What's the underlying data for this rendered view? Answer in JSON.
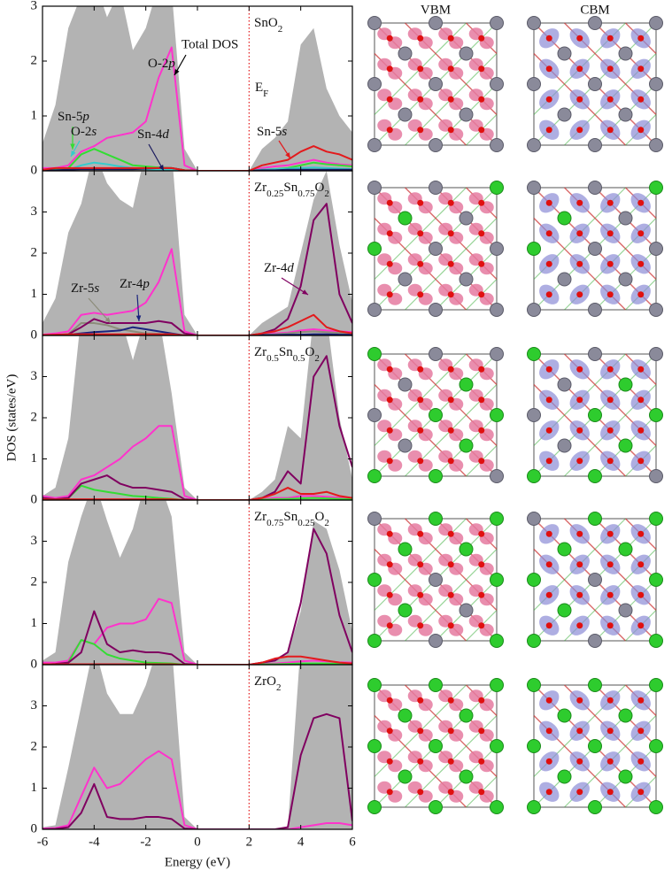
{
  "structures": {
    "columns": [
      "VBM",
      "CBM"
    ]
  },
  "chart_data": [
    {
      "type": "line",
      "title": "SnO2",
      "fermi_label": "EF",
      "fermi_level": 2,
      "x": [
        -6,
        -5.5,
        -5,
        -4.5,
        -4,
        -3.5,
        -3,
        -2.5,
        -2,
        -1.5,
        -1,
        -0.5,
        0,
        0.5,
        1,
        1.5,
        2,
        2.5,
        3,
        3.5,
        4,
        4.5,
        5,
        5.5,
        6
      ],
      "xlim": [
        -6,
        6
      ],
      "xticks": [
        -6,
        -4,
        -2,
        0,
        2,
        4,
        6
      ],
      "ylim": [
        0,
        3
      ],
      "yticks": [
        0,
        1,
        2,
        3
      ],
      "series": [
        {
          "name": "Total DOS",
          "color": "#b3b3b3",
          "fill": true,
          "values": [
            0.5,
            1.2,
            2.6,
            3.2,
            3.5,
            2.8,
            3.3,
            2.2,
            2.6,
            3.4,
            3.3,
            0.4,
            0,
            0,
            0,
            0,
            0,
            0.4,
            0.6,
            0.9,
            2.3,
            2.6,
            1.5,
            1.0,
            0.7
          ]
        },
        {
          "name": "O-2p",
          "color": "#ff33cc",
          "values": [
            0.05,
            0.05,
            0.1,
            0.35,
            0.45,
            0.6,
            0.65,
            0.7,
            0.9,
            1.7,
            2.25,
            0.1,
            0,
            0,
            0,
            0,
            0,
            0.05,
            0.08,
            0.1,
            0.15,
            0.2,
            0.15,
            0.12,
            0.1
          ]
        },
        {
          "name": "Sn-5p",
          "color": "#33dd33",
          "values": [
            0.02,
            0.03,
            0.05,
            0.3,
            0.4,
            0.3,
            0.2,
            0.1,
            0.08,
            0.06,
            0.05,
            0.01,
            0,
            0,
            0,
            0,
            0,
            0.02,
            0.03,
            0.05,
            0.1,
            0.15,
            0.12,
            0.1,
            0.08
          ]
        },
        {
          "name": "O-2s",
          "color": "#33cccc",
          "values": [
            0.01,
            0.01,
            0.02,
            0.1,
            0.15,
            0.12,
            0.08,
            0.05,
            0.03,
            0.02,
            0.02,
            0,
            0,
            0,
            0,
            0,
            0,
            0.02,
            0.03,
            0.04,
            0.05,
            0.06,
            0.05,
            0.04,
            0.03
          ]
        },
        {
          "name": "Sn-4d",
          "color": "#1a1a5e",
          "values": [
            0.01,
            0.01,
            0.02,
            0.03,
            0.03,
            0.03,
            0.03,
            0.03,
            0.04,
            0.05,
            0.05,
            0.01,
            0,
            0,
            0,
            0,
            0,
            0.01,
            0.01,
            0.02,
            0.02,
            0.02,
            0.02,
            0.02,
            0.02
          ]
        },
        {
          "name": "Sn-5s",
          "color": "#e31a1c",
          "values": [
            0.02,
            0.05,
            0.05,
            0.05,
            0.05,
            0.05,
            0.05,
            0.05,
            0.05,
            0.05,
            0.05,
            0.01,
            0,
            0,
            0,
            0,
            0,
            0.1,
            0.15,
            0.2,
            0.35,
            0.45,
            0.35,
            0.3,
            0.2
          ]
        }
      ]
    },
    {
      "type": "line",
      "title": "Zr0.25Sn0.75O2",
      "fermi_level": 2,
      "x": [
        -6,
        -5.5,
        -5,
        -4.5,
        -4,
        -3.5,
        -3,
        -2.5,
        -2,
        -1.5,
        -1,
        -0.5,
        0,
        0.5,
        1,
        1.5,
        2,
        2.5,
        3,
        3.5,
        4,
        4.5,
        5,
        5.5,
        6
      ],
      "xlim": [
        -6,
        6
      ],
      "xticks": [
        -6,
        -4,
        -2,
        0,
        2,
        4,
        6
      ],
      "ylim": [
        0,
        4
      ],
      "yticks": [
        0,
        1,
        2,
        3
      ],
      "series": [
        {
          "color": "#b3b3b3",
          "fill": true,
          "values": [
            0.3,
            0.9,
            2.5,
            3.2,
            4.5,
            3.7,
            3.3,
            3.1,
            4.5,
            4.5,
            4.5,
            0.5,
            0,
            0,
            0,
            0,
            0,
            0.3,
            0.5,
            0.7,
            2.0,
            3.3,
            4.0,
            2.2,
            0.8
          ]
        },
        {
          "color": "#ff33cc",
          "values": [
            0.02,
            0.05,
            0.1,
            0.5,
            0.55,
            0.5,
            0.55,
            0.6,
            0.8,
            1.3,
            2.1,
            0.1,
            0,
            0,
            0,
            0,
            0,
            0.03,
            0.05,
            0.07,
            0.12,
            0.15,
            0.12,
            0.1,
            0.08
          ]
        },
        {
          "name": "Zr-5s",
          "color": "#8c8c7a",
          "values": [
            0.01,
            0.01,
            0.03,
            0.3,
            0.3,
            0.25,
            0.15,
            0.1,
            0.05,
            0.04,
            0.03,
            0,
            0,
            0,
            0,
            0,
            0,
            0.02,
            0.03,
            0.05,
            0.08,
            0.1,
            0.08,
            0.06,
            0.05
          ]
        },
        {
          "name": "Zr-4p",
          "color": "#1a237e",
          "values": [
            0.01,
            0.01,
            0.02,
            0.05,
            0.08,
            0.1,
            0.12,
            0.2,
            0.15,
            0.1,
            0.05,
            0,
            0,
            0,
            0,
            0,
            0,
            0.01,
            0.01,
            0.02,
            0.02,
            0.03,
            0.03,
            0.02,
            0.02
          ]
        },
        {
          "name": "Zr-4d",
          "color": "#800060",
          "values": [
            0,
            0.01,
            0.03,
            0.2,
            0.4,
            0.3,
            0.3,
            0.3,
            0.3,
            0.35,
            0.3,
            0.05,
            0,
            0,
            0,
            0,
            0,
            0.05,
            0.15,
            0.4,
            1.2,
            2.8,
            3.2,
            1.0,
            0.3
          ]
        },
        {
          "color": "#e31a1c",
          "values": [
            0.01,
            0.02,
            0.03,
            0.03,
            0.03,
            0.03,
            0.03,
            0.03,
            0.03,
            0.03,
            0.03,
            0,
            0,
            0,
            0,
            0,
            0,
            0.05,
            0.1,
            0.2,
            0.35,
            0.5,
            0.2,
            0.1,
            0.05
          ]
        }
      ]
    },
    {
      "type": "line",
      "title": "Zr0.5Sn0.5O2",
      "fermi_level": 2,
      "ylabel": "DOS (states/eV)",
      "x": [
        -6,
        -5.5,
        -5,
        -4.5,
        -4,
        -3.5,
        -3,
        -2.5,
        -2,
        -1.5,
        -1,
        -0.5,
        0,
        0.5,
        1,
        1.5,
        2,
        2.5,
        3,
        3.5,
        4,
        4.5,
        5,
        5.5,
        6
      ],
      "xlim": [
        -6,
        6
      ],
      "xticks": [
        -6,
        -4,
        -2,
        0,
        2,
        4,
        6
      ],
      "ylim": [
        0,
        4
      ],
      "yticks": [
        0,
        1,
        2,
        3
      ],
      "series": [
        {
          "color": "#b3b3b3",
          "fill": true,
          "values": [
            0.1,
            0.3,
            1.5,
            4.5,
            4.5,
            4.5,
            4.5,
            3.4,
            4.5,
            4.5,
            2.6,
            0.3,
            0,
            0,
            0,
            0,
            0,
            0.2,
            0.5,
            1.8,
            1.5,
            4.5,
            4.5,
            2.0,
            0.5
          ]
        },
        {
          "color": "#ff33cc",
          "values": [
            0.1,
            0.05,
            0.1,
            0.5,
            0.6,
            0.8,
            1.0,
            1.3,
            1.5,
            1.8,
            1.8,
            0.1,
            0,
            0,
            0,
            0,
            0,
            0.03,
            0.05,
            0.05,
            0.1,
            0.1,
            0.08,
            0.06,
            0.05
          ]
        },
        {
          "color": "#33dd33",
          "values": [
            0.05,
            0.02,
            0.05,
            0.35,
            0.25,
            0.2,
            0.15,
            0.1,
            0.08,
            0.05,
            0.03,
            0,
            0,
            0,
            0,
            0,
            0,
            0.01,
            0.02,
            0.03,
            0.04,
            0.05,
            0.04,
            0.03,
            0.02
          ]
        },
        {
          "color": "#800060",
          "values": [
            0.05,
            0.02,
            0.05,
            0.4,
            0.5,
            0.6,
            0.4,
            0.3,
            0.3,
            0.25,
            0.2,
            0.02,
            0,
            0,
            0,
            0,
            0,
            0.05,
            0.2,
            0.7,
            0.4,
            3.0,
            3.5,
            1.8,
            0.8
          ]
        },
        {
          "color": "#e31a1c",
          "values": [
            0.02,
            0.01,
            0.02,
            0.02,
            0.02,
            0.02,
            0.02,
            0.02,
            0.02,
            0.02,
            0.02,
            0,
            0,
            0,
            0,
            0,
            0,
            0.05,
            0.15,
            0.3,
            0.15,
            0.15,
            0.2,
            0.1,
            0.05
          ]
        }
      ]
    },
    {
      "type": "line",
      "title": "Zr0.75Sn0.25O2",
      "fermi_level": 2,
      "x": [
        -6,
        -5.5,
        -5,
        -4.5,
        -4,
        -3.5,
        -3,
        -2.5,
        -2,
        -1.5,
        -1,
        -0.5,
        0,
        0.5,
        1,
        1.5,
        2,
        2.5,
        3,
        3.5,
        4,
        4.5,
        5,
        5.5,
        6
      ],
      "xlim": [
        -6,
        6
      ],
      "xticks": [
        -6,
        -4,
        -2,
        0,
        2,
        4,
        6
      ],
      "ylim": [
        0,
        4
      ],
      "yticks": [
        0,
        1,
        2,
        3
      ],
      "series": [
        {
          "color": "#b3b3b3",
          "fill": true,
          "values": [
            0.1,
            0.3,
            2.5,
            3.6,
            4.5,
            3.5,
            2.6,
            3.3,
            4.5,
            4.5,
            3.6,
            0.3,
            0,
            0,
            0,
            0,
            0,
            0.05,
            0.15,
            0.3,
            1.3,
            3.5,
            3.3,
            2.3,
            0.8
          ]
        },
        {
          "color": "#ff33cc",
          "values": [
            0.05,
            0.05,
            0.1,
            0.6,
            0.5,
            0.9,
            1.0,
            1.0,
            1.1,
            1.6,
            1.5,
            0.1,
            0,
            0,
            0,
            0,
            0,
            0.02,
            0.03,
            0.05,
            0.08,
            0.1,
            0.08,
            0.06,
            0.05
          ]
        },
        {
          "color": "#33dd33",
          "values": [
            0,
            0,
            0.05,
            0.6,
            0.5,
            0.25,
            0.15,
            0.1,
            0.05,
            0.04,
            0.03,
            0,
            0,
            0,
            0,
            0,
            0,
            0.01,
            0.01,
            0.02,
            0.03,
            0.03,
            0.03,
            0.02,
            0.02
          ]
        },
        {
          "color": "#800060",
          "values": [
            0,
            0.02,
            0.05,
            0.3,
            1.3,
            0.5,
            0.3,
            0.35,
            0.3,
            0.3,
            0.25,
            0.02,
            0,
            0,
            0,
            0,
            0,
            0.05,
            0.1,
            0.3,
            1.5,
            3.3,
            2.7,
            1.2,
            0.3
          ]
        },
        {
          "color": "#e31a1c",
          "values": [
            0.01,
            0.01,
            0.01,
            0.01,
            0.01,
            0.01,
            0.01,
            0.01,
            0.01,
            0.01,
            0.01,
            0,
            0,
            0,
            0,
            0,
            0,
            0.05,
            0.15,
            0.2,
            0.2,
            0.15,
            0.1,
            0.05,
            0.03
          ]
        }
      ]
    },
    {
      "type": "line",
      "title": "ZrO2",
      "fermi_level": 2,
      "xlabel": "Energy (eV)",
      "x": [
        -6,
        -5.5,
        -5,
        -4.5,
        -4,
        -3.5,
        -3,
        -2.5,
        -2,
        -1.5,
        -1,
        -0.5,
        0,
        0.5,
        1,
        1.5,
        2,
        2.5,
        3,
        3.5,
        4,
        4.5,
        5,
        5.5,
        6
      ],
      "xlim": [
        -6,
        6
      ],
      "xticks": [
        -6,
        -4,
        -2,
        0,
        2,
        4,
        6
      ],
      "ylim": [
        0,
        4
      ],
      "yticks": [
        0,
        1,
        2,
        3
      ],
      "series": [
        {
          "color": "#b3b3b3",
          "fill": true,
          "values": [
            0.05,
            0.1,
            1.5,
            3.0,
            4.5,
            3.3,
            2.8,
            2.8,
            3.5,
            4.5,
            4.5,
            0.3,
            0,
            0,
            0,
            0,
            0,
            0,
            0,
            0.05,
            4.5,
            4.5,
            4.5,
            4.5,
            4.5
          ]
        },
        {
          "color": "#ff33cc",
          "values": [
            0.02,
            0.03,
            0.1,
            0.8,
            1.5,
            1.0,
            1.1,
            1.4,
            1.7,
            1.9,
            1.7,
            0.1,
            0,
            0,
            0,
            0,
            0,
            0,
            0,
            0,
            0.05,
            0.1,
            0.15,
            0.15,
            0.1
          ]
        },
        {
          "color": "#800060",
          "values": [
            0,
            0.01,
            0.05,
            0.4,
            1.1,
            0.3,
            0.25,
            0.25,
            0.3,
            0.3,
            0.25,
            0.02,
            0,
            0,
            0,
            0,
            0,
            0,
            0,
            0.05,
            1.8,
            2.7,
            2.8,
            2.7,
            0.2
          ]
        }
      ]
    }
  ]
}
